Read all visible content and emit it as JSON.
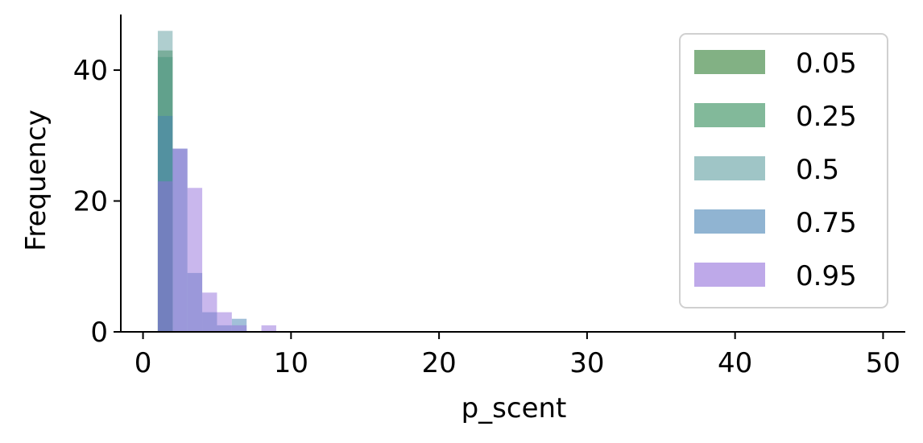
{
  "chart_data": {
    "type": "histogram",
    "xlabel": "p_scent",
    "ylabel": "Frequency",
    "xlim": [
      -1.5,
      51.5
    ],
    "ylim": [
      0,
      48.5
    ],
    "xticks": [
      0,
      10,
      20,
      30,
      40,
      50
    ],
    "yticks": [
      0,
      20,
      40
    ],
    "bin_edges": [
      1,
      2,
      3,
      4,
      5,
      6,
      7,
      8,
      9
    ],
    "legend_position": "upper-right",
    "series": [
      {
        "name": "0.05",
        "color": "#2e7d32",
        "counts": [
          43,
          0,
          0,
          0,
          0,
          0,
          0,
          0
        ]
      },
      {
        "name": "0.25",
        "color": "#2e8b57",
        "counts": [
          42,
          0,
          0,
          0,
          0,
          0,
          0,
          0
        ]
      },
      {
        "name": "0.5",
        "color": "#5f9ea0",
        "counts": [
          46,
          0,
          0,
          0,
          0,
          0,
          0,
          0
        ]
      },
      {
        "name": "0.75",
        "color": "#4682b4",
        "counts": [
          33,
          28,
          9,
          3,
          1,
          2,
          0,
          0
        ]
      },
      {
        "name": "0.95",
        "color": "#9370db",
        "counts": [
          23,
          28,
          22,
          6,
          3,
          1,
          0,
          1
        ]
      }
    ]
  }
}
